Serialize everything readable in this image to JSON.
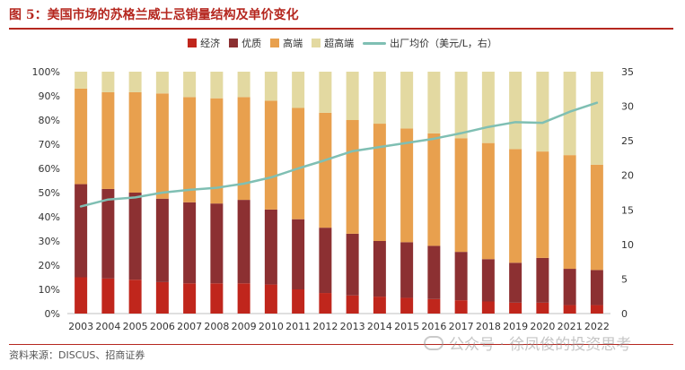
{
  "header": {
    "title": "图 5：美国市场的苏格兰威士忌销量结构及单价变化"
  },
  "footer": {
    "source": "资料来源：DISCUS、招商证券",
    "watermark": "公众号 · 徐凤俊的投资思考"
  },
  "colors": {
    "economy": "#c0261c",
    "premium": "#8c3032",
    "high_end": "#e8a04e",
    "super_premium": "#e3d9a1",
    "price_line": "#7fbfb3",
    "title": "#b5271f"
  },
  "chart_data": {
    "type": "stacked-bar-with-line",
    "title": "美国市场的苏格兰威士忌销量结构及单价变化",
    "categories": [
      "2003",
      "2004",
      "2005",
      "2006",
      "2007",
      "2008",
      "2009",
      "2010",
      "2011",
      "2012",
      "2013",
      "2014",
      "2015",
      "2016",
      "2017",
      "2018",
      "2019",
      "2020",
      "2021",
      "2022"
    ],
    "series": [
      {
        "name": "经济",
        "values": [
          15,
          14.5,
          14,
          13,
          12.5,
          12.5,
          12.5,
          12,
          10,
          8.5,
          7.5,
          7,
          6.5,
          6,
          5.5,
          5,
          4.5,
          4.5,
          3.5,
          3.5
        ]
      },
      {
        "name": "优质",
        "values": [
          38.5,
          37,
          36,
          34.5,
          33.5,
          33,
          34.5,
          31,
          29,
          27,
          25.5,
          23,
          23,
          22,
          20,
          17.5,
          16.5,
          18.5,
          15,
          14.5
        ]
      },
      {
        "name": "高端",
        "values": [
          39.5,
          40,
          41.5,
          43.5,
          43.5,
          43.5,
          42.5,
          45,
          46,
          47.5,
          47,
          48.5,
          47,
          46.5,
          47,
          48,
          47,
          44,
          47,
          43.5
        ]
      },
      {
        "name": "超高端",
        "values": [
          7,
          8.5,
          8.5,
          9,
          10.5,
          11,
          10.5,
          12,
          15,
          17,
          20,
          21.5,
          23.5,
          25.5,
          27.5,
          29.5,
          32,
          33,
          34.5,
          38.5
        ]
      }
    ],
    "line_series": {
      "name": "出厂均价（美元/L，右）",
      "values": [
        15.5,
        16.5,
        16.8,
        17.5,
        17.9,
        18.2,
        18.8,
        19.7,
        21,
        22.2,
        23.5,
        24.1,
        24.7,
        25.3,
        26.1,
        27,
        27.7,
        27.6,
        29.2,
        30.5
      ]
    },
    "y_left": {
      "min": 0,
      "max": 100,
      "ticks": [
        "0%",
        "10%",
        "20%",
        "30%",
        "40%",
        "50%",
        "60%",
        "70%",
        "80%",
        "90%",
        "100%"
      ]
    },
    "y_right": {
      "min": 0,
      "max": 35,
      "ticks": [
        "0",
        "5",
        "10",
        "15",
        "20",
        "25",
        "30",
        "35"
      ]
    },
    "legend": [
      "经济",
      "优质",
      "高端",
      "超高端",
      "出厂均价（美元/L，右）"
    ],
    "legend_position": "top"
  }
}
